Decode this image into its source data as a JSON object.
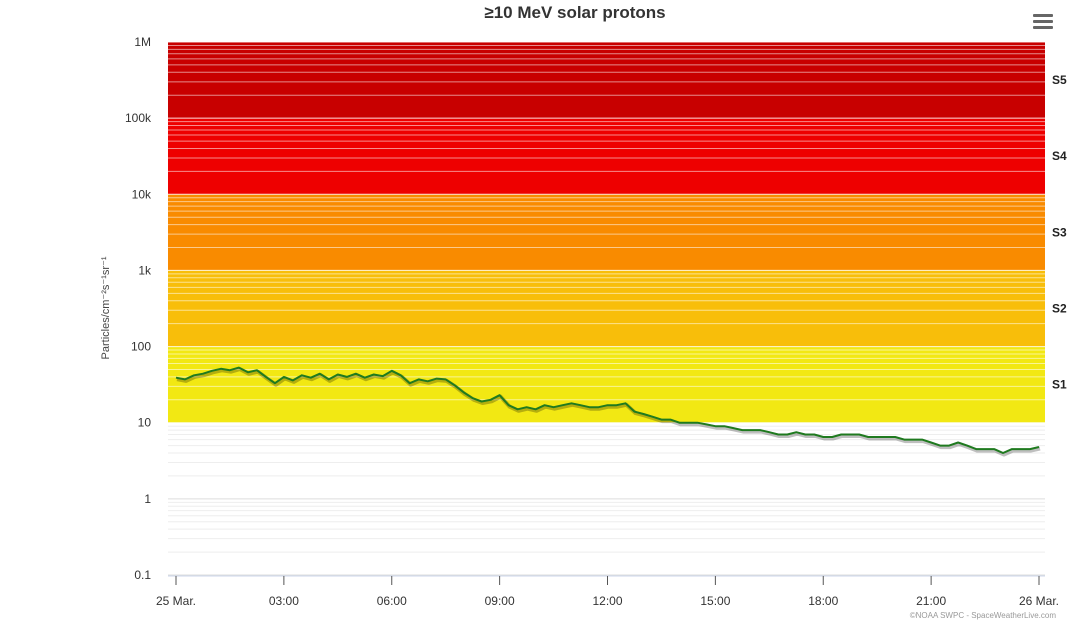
{
  "chart_data": {
    "type": "line",
    "title": "≥10 MeV solar protons",
    "ylabel": "Particles/cm⁻²s⁻¹sr⁻¹",
    "xlabel": "",
    "y_scale": "log",
    "ylim": [
      0.1,
      1000000
    ],
    "y_ticks": [
      "1M",
      "100k",
      "10k",
      "1k",
      "100",
      "10",
      "1",
      "0.1"
    ],
    "x_unit": "hours since 25 Mar. 00:00",
    "x_ticks": [
      "25 Mar.",
      "03:00",
      "06:00",
      "09:00",
      "12:00",
      "15:00",
      "18:00",
      "21:00",
      "26 Mar."
    ],
    "xlim": [
      -0.1,
      24.2
    ],
    "bands": [
      {
        "label": "S1",
        "range": [
          10,
          100
        ],
        "color": "#f2e813"
      },
      {
        "label": "S2",
        "range": [
          100,
          1000
        ],
        "color": "#f8be0a"
      },
      {
        "label": "S3",
        "range": [
          1000,
          10000
        ],
        "color": "#f98b00"
      },
      {
        "label": "S4",
        "range": [
          10000,
          100000
        ],
        "color": "#ee0000"
      },
      {
        "label": "S5",
        "range": [
          100000,
          1000000
        ],
        "color": "#c80000"
      }
    ],
    "series": [
      {
        "name": "",
        "color": "#1f7a1f",
        "x": [
          0.0,
          0.25,
          0.5,
          0.75,
          1.0,
          1.25,
          1.5,
          1.75,
          2.0,
          2.25,
          2.5,
          2.75,
          3.0,
          3.25,
          3.5,
          3.75,
          4.0,
          4.25,
          4.5,
          4.75,
          5.0,
          5.25,
          5.5,
          5.75,
          6.0,
          6.25,
          6.5,
          6.75,
          7.0,
          7.25,
          7.5,
          7.75,
          8.0,
          8.25,
          8.5,
          8.75,
          9.0,
          9.25,
          9.5,
          9.75,
          10.0,
          10.25,
          10.5,
          10.75,
          11.0,
          11.25,
          11.5,
          11.75,
          12.0,
          12.25,
          12.5,
          12.75,
          13.0,
          13.25,
          13.5,
          13.75,
          14.0,
          14.25,
          14.5,
          14.75,
          15.0,
          15.25,
          15.5,
          15.75,
          16.0,
          16.25,
          16.5,
          16.75,
          17.0,
          17.25,
          17.5,
          17.75,
          18.0,
          18.25,
          18.5,
          18.75,
          19.0,
          19.25,
          19.5,
          19.75,
          20.0,
          20.25,
          20.5,
          20.75,
          21.0,
          21.25,
          21.5,
          21.75,
          22.0,
          22.25,
          22.5,
          22.75,
          23.0,
          23.25,
          23.5,
          23.75,
          24.0
        ],
        "y": [
          39,
          37,
          42,
          44,
          48,
          51,
          49,
          53,
          46,
          49,
          40,
          33,
          40,
          36,
          42,
          39,
          44,
          37,
          43,
          40,
          44,
          39,
          43,
          41,
          48,
          42,
          33,
          37,
          35,
          38,
          37,
          31,
          25,
          21,
          19,
          20,
          23,
          17,
          15,
          16,
          15,
          17,
          16,
          17,
          18,
          17,
          16,
          16,
          17,
          17,
          18,
          14,
          13,
          12,
          11,
          11,
          10,
          10,
          10,
          9.5,
          9.0,
          9.0,
          8.5,
          8.0,
          8.0,
          8.0,
          7.5,
          7.0,
          7.0,
          7.5,
          7.0,
          7.0,
          6.5,
          6.5,
          7.0,
          7.0,
          7.0,
          6.5,
          6.5,
          6.5,
          6.5,
          6.0,
          6.0,
          6.0,
          5.5,
          5.0,
          5.0,
          5.5,
          5.0,
          4.5,
          4.5,
          4.5,
          4.0,
          4.5,
          4.5,
          4.5,
          4.8
        ]
      }
    ],
    "grid": true,
    "legend": "none"
  },
  "credit": "©NOAA SWPC - SpaceWeatherLive.com",
  "menu_icon": "hamburger-menu-icon"
}
